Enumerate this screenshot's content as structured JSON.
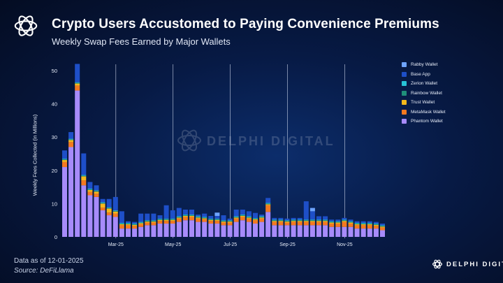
{
  "header": {
    "title": "Crypto Users Accustomed to Paying Convenience Premiums",
    "subtitle": "Weekly Swap Fees Earned by Major Wallets"
  },
  "footer": {
    "note": "Data as of 12-01-2025",
    "source": "Source: DeFiLlama"
  },
  "brand": {
    "name": "DELPHI DIGITAL"
  },
  "watermark": {
    "text": "DELPHI DIGITAL"
  },
  "icons": {
    "logo": "delphi-knot-logo-icon"
  },
  "chart_data": {
    "type": "bar",
    "stacked": true,
    "title": "Weekly Swap Fees Earned by Major Wallets",
    "ylabel": "Weekly Fees Collected (in Millions)",
    "xlabel": "",
    "ylim": [
      0,
      52
    ],
    "yticks": [
      0,
      10,
      20,
      30,
      40,
      50
    ],
    "grid": false,
    "legend_position": "top-right",
    "x_tick_labels": [
      {
        "label": "Mar-25",
        "index": 8
      },
      {
        "label": "May-25",
        "index": 17
      },
      {
        "label": "Jul-25",
        "index": 26
      },
      {
        "label": "Sep-25",
        "index": 35
      },
      {
        "label": "Nov-25",
        "index": 44
      }
    ],
    "series": [
      {
        "name": "Phantom Wallet",
        "color": "#a78bfa",
        "values": [
          21,
          27,
          44,
          15.5,
          12.5,
          12,
          8,
          6.5,
          6,
          2.5,
          2.5,
          2.5,
          3,
          3.5,
          3.5,
          4,
          4,
          4,
          4.5,
          5,
          5,
          4.5,
          4.5,
          4,
          4,
          3.5,
          3.5,
          4.5,
          5,
          4.5,
          4,
          4.5,
          7.5,
          3.5,
          3.5,
          3.5,
          3.5,
          3.5,
          3.5,
          3.5,
          3.5,
          3.5,
          3,
          3,
          3,
          3,
          2.5,
          2.5,
          2.5,
          2.5,
          2
        ]
      },
      {
        "name": "MetaMask Wallet",
        "color": "#f47920",
        "values": [
          1.5,
          1.5,
          1.5,
          1.5,
          1,
          1,
          0.8,
          0.8,
          1,
          1,
          1,
          0.8,
          0.8,
          0.8,
          0.8,
          0.8,
          0.8,
          0.8,
          1,
          1,
          1,
          1,
          0.8,
          0.8,
          0.8,
          0.8,
          0.8,
          1,
          1,
          1,
          1,
          1,
          2,
          1,
          1,
          0.8,
          1,
          1,
          1,
          1,
          1,
          1,
          1,
          1,
          1.5,
          1,
          1,
          1,
          1,
          0.8,
          0.8
        ]
      },
      {
        "name": "Trust Wallet",
        "color": "#f5b81c",
        "values": [
          0.6,
          0.6,
          0.6,
          1.2,
          0.6,
          0.6,
          1.2,
          1.2,
          0.6,
          0.3,
          0.3,
          0.3,
          0.3,
          0.3,
          0.3,
          0.3,
          0.3,
          0.3,
          0.3,
          0.3,
          0.3,
          0.3,
          0.3,
          0.3,
          0.3,
          0.3,
          0.3,
          0.3,
          0.3,
          0.3,
          0.3,
          0.3,
          0.3,
          0.3,
          0.3,
          0.3,
          0.3,
          0.3,
          0.3,
          0.3,
          0.3,
          0.3,
          0.3,
          0.3,
          0.3,
          0.3,
          0.3,
          0.3,
          0.3,
          0.3,
          0.3
        ]
      },
      {
        "name": "Rainbow Wallet",
        "color": "#1f8f7a",
        "values": [
          0.2,
          0.2,
          0.2,
          0.2,
          0.2,
          0.2,
          0.2,
          0.2,
          0.2,
          0.2,
          0.2,
          0.2,
          0.2,
          0.2,
          0.2,
          0.2,
          0.2,
          0.2,
          0.2,
          0.2,
          0.2,
          0.2,
          0.2,
          0.2,
          0.2,
          0.2,
          0.2,
          0.2,
          0.2,
          0.2,
          0.2,
          0.2,
          0.2,
          0.2,
          0.2,
          0.2,
          0.2,
          0.2,
          0.2,
          0.2,
          0.2,
          0.2,
          0.2,
          0.2,
          0.2,
          0.2,
          0.2,
          0.2,
          0.2,
          0.2,
          0.2
        ]
      },
      {
        "name": "Zerion Wallet",
        "color": "#27c2d6",
        "values": [
          0.2,
          0.2,
          0.2,
          0.2,
          0.2,
          0.2,
          0.2,
          0.2,
          0.2,
          0.2,
          0.2,
          0.2,
          0.2,
          0.2,
          0.2,
          0.2,
          0.2,
          0.2,
          0.2,
          0.2,
          0.2,
          0.2,
          0.2,
          0.2,
          0.2,
          0.2,
          0.2,
          0.2,
          0.2,
          0.2,
          0.2,
          0.2,
          0.2,
          0.2,
          0.2,
          0.2,
          0.2,
          0.2,
          0.2,
          0.2,
          0.2,
          0.2,
          0.2,
          0.2,
          0.2,
          0.2,
          0.2,
          0.2,
          0.2,
          0.2,
          0.2
        ]
      },
      {
        "name": "Base App",
        "color": "#1e4fc8",
        "values": [
          2.5,
          2,
          5.5,
          6.5,
          2,
          1.5,
          1,
          2.5,
          4,
          3.5,
          0.5,
          0.5,
          2.5,
          2,
          2,
          1,
          4,
          2.5,
          2.5,
          1.5,
          1.5,
          0.5,
          1,
          0.8,
          0.8,
          1.5,
          0.5,
          2,
          1.5,
          1.5,
          1.5,
          0.5,
          1.5,
          0.5,
          0.5,
          0.5,
          0.5,
          0.5,
          5.5,
          2.5,
          1,
          1,
          0.5,
          0.5,
          0.5,
          0.5,
          0.5,
          0.5,
          0.5,
          0.5,
          0.5
        ]
      },
      {
        "name": "Rabby Wallet",
        "color": "#6ea4ff",
        "values": [
          0,
          0,
          0,
          0,
          0,
          0,
          0,
          0,
          0,
          0,
          0,
          0,
          0,
          0,
          0,
          0,
          0,
          0,
          0,
          0,
          0,
          0,
          0,
          0,
          1,
          0,
          0,
          0,
          0,
          0,
          0,
          0,
          0,
          0,
          0,
          0,
          0,
          0,
          0,
          1,
          0,
          0,
          0,
          0,
          0,
          0,
          0,
          0,
          0,
          0,
          0
        ]
      }
    ]
  }
}
